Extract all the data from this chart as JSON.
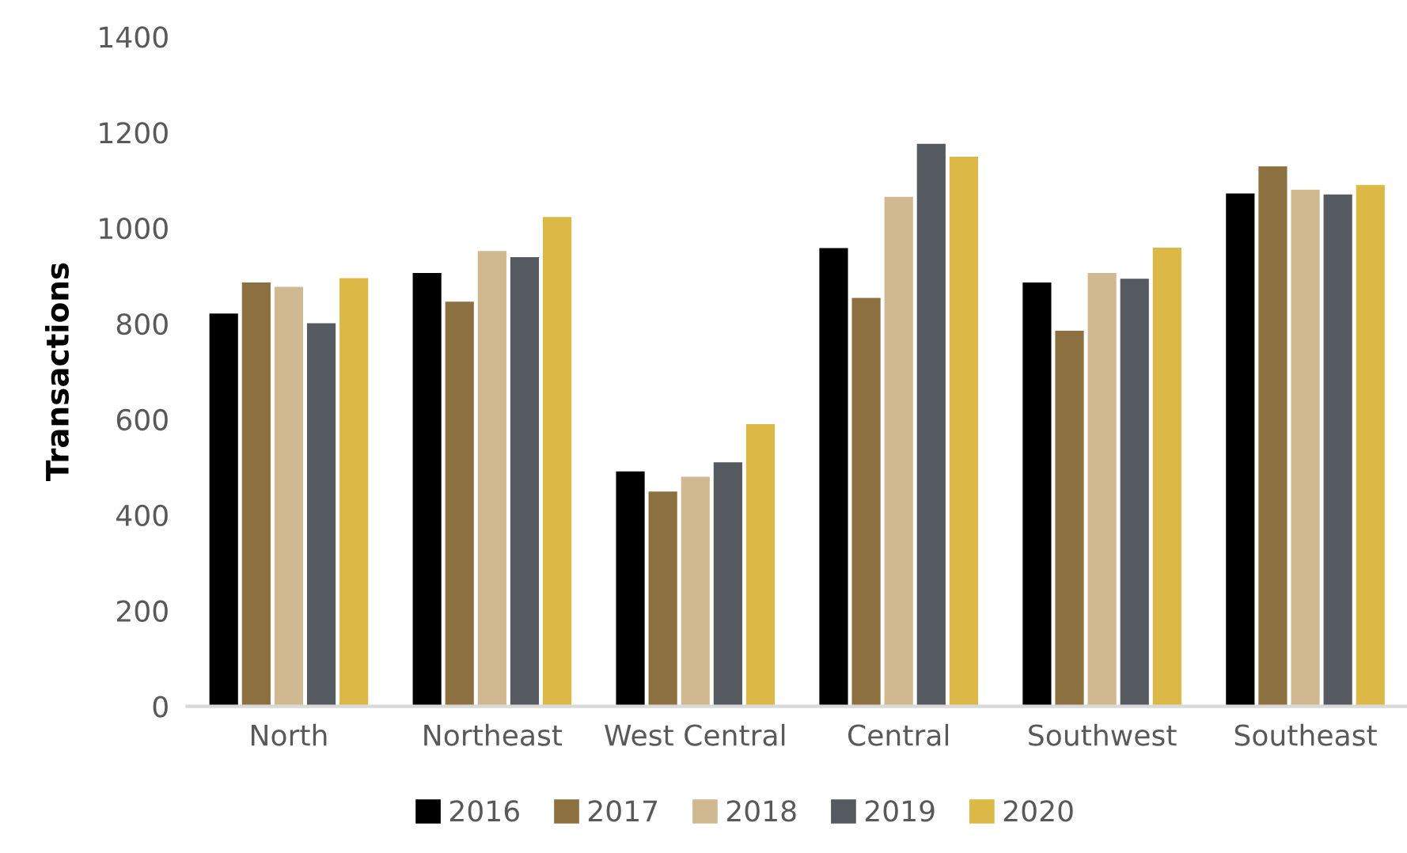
{
  "chart_data": {
    "type": "bar",
    "ylabel": "Transactions",
    "categories": [
      "North",
      "Northeast",
      "West Central",
      "Central",
      "Southwest",
      "Southeast"
    ],
    "series": [
      {
        "name": "2016",
        "color": "#000000",
        "values": [
          821,
          906,
          491,
          958,
          886,
          1072
        ]
      },
      {
        "name": "2017",
        "color": "#8d703f",
        "values": [
          886,
          846,
          449,
          854,
          785,
          1129
        ]
      },
      {
        "name": "2018",
        "color": "#d0b990",
        "values": [
          877,
          952,
          480,
          1065,
          906,
          1080
        ]
      },
      {
        "name": "2019",
        "color": "#555960",
        "values": [
          801,
          939,
          510,
          1176,
          894,
          1070
        ]
      },
      {
        "name": "2020",
        "color": "#dcb946",
        "values": [
          895,
          1023,
          590,
          1149,
          959,
          1090
        ]
      }
    ],
    "ylim": [
      0,
      1400
    ],
    "yticks": [
      0,
      200,
      400,
      600,
      800,
      1000,
      1200,
      1400
    ],
    "grid": false,
    "legend": "bottom"
  }
}
